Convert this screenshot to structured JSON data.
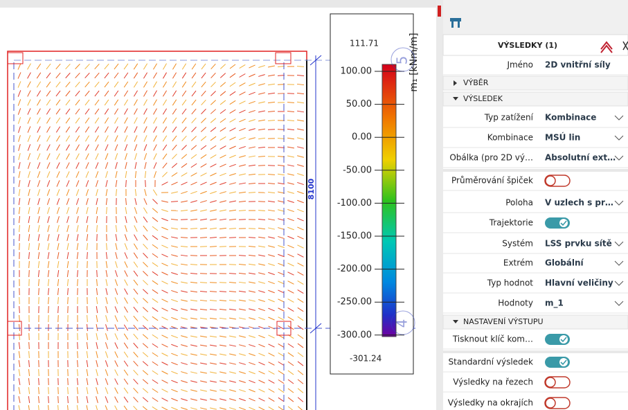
{
  "viewport": {
    "dimension_label": "8100",
    "grid_labels": [
      "5",
      "4"
    ]
  },
  "legend": {
    "max": "111.71",
    "ticks": [
      "100.00",
      "50.00",
      "0.00",
      "-50.00",
      "-100.00",
      "-150.00",
      "-200.00",
      "-250.00",
      "-300.00"
    ],
    "min": "-301.24",
    "unit": "m₁ [kNm/m]"
  },
  "panel": {
    "title": "VÝSLEDKY (1)",
    "rows": [
      {
        "label": "Jméno",
        "value": "2D vnitřní síly",
        "dropdown": false
      },
      {
        "section": "VÝBĚR",
        "expanded": false
      },
      {
        "section": "VÝSLEDEK",
        "expanded": true
      },
      {
        "label": "Typ zatížení",
        "value": "Kombinace",
        "dropdown": true
      },
      {
        "label": "Kombinace",
        "value": "MSÚ lin",
        "dropdown": true
      },
      {
        "label": "Obálka (pro 2D vý…",
        "value": "Absolutní ext…",
        "dropdown": true
      },
      {
        "label": "Průměrování špiček",
        "toggle": false
      },
      {
        "label": "Poloha",
        "value": "V uzlech s pr…",
        "dropdown": true
      },
      {
        "label": "Trajektorie",
        "toggle": true
      },
      {
        "label": "Systém",
        "value": "LSS prvku sítě",
        "dropdown": true
      },
      {
        "label": "Extrém",
        "value": "Globální",
        "dropdown": true
      },
      {
        "label": "Typ hodnot",
        "value": "Hlavní veličiny",
        "dropdown": true
      },
      {
        "label": "Hodnoty",
        "value": "m_1",
        "dropdown": true
      },
      {
        "section": "NASTAVENÍ VÝSTUPU",
        "expanded": true
      },
      {
        "label": "Tisknout klíč kom…",
        "toggle": true
      },
      {
        "label": "Standardní výsledek",
        "toggle": true
      },
      {
        "label": "Výsledky na řezech",
        "toggle": false
      },
      {
        "label": "Výsledky na okrajích",
        "toggle": false
      }
    ]
  }
}
